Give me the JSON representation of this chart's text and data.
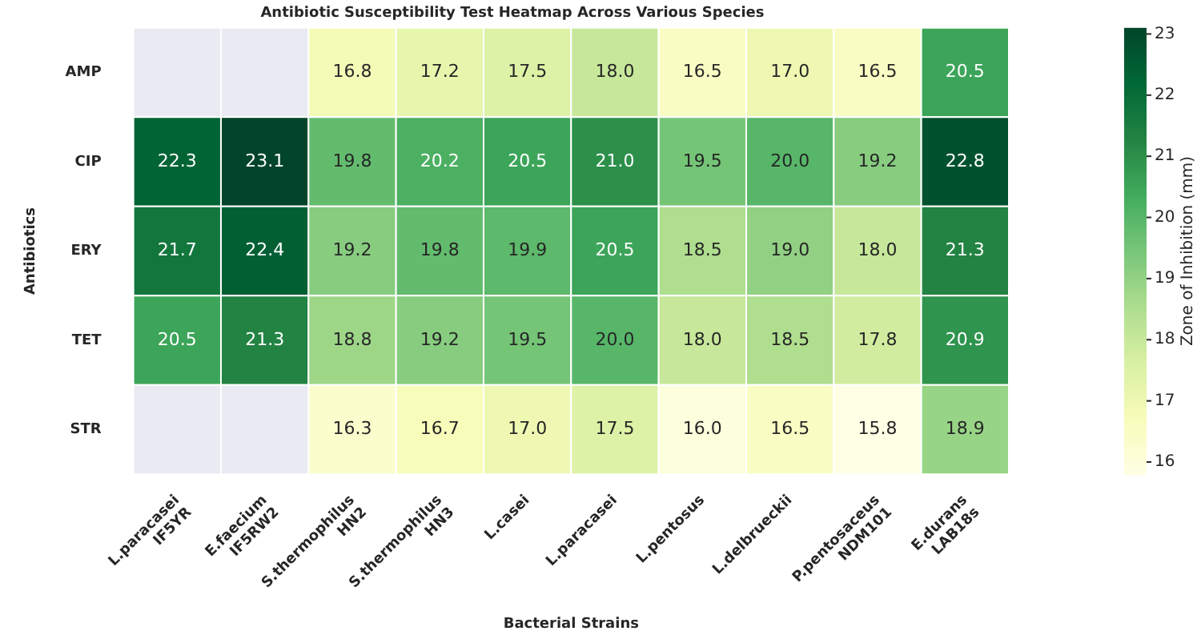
{
  "chart_data": {
    "type": "heatmap",
    "title": "Antibiotic Susceptibility Test Heatmap Across Various Species",
    "xlabel": "Bacterial Strains",
    "ylabel": "Antibiotics",
    "clabel": "Zone of Inhibition (mm)",
    "categories": [
      "L.paracasei\nIF5YR",
      "E.faecium\nIF5RW2",
      "S.thermophilus\nHN2",
      "S.thermophilus\nHN3",
      "L.casei",
      "L.paracasei",
      "L.pentosus",
      "L.delbrueckii",
      "P.pentosaceus\nNDM101",
      "E.durans\nLAB18s"
    ],
    "y_categories": [
      "AMP",
      "CIP",
      "ERY",
      "TET",
      "STR"
    ],
    "cells": [
      [
        null,
        null,
        16.8,
        17.2,
        17.5,
        18.0,
        16.5,
        17.0,
        16.5,
        20.5
      ],
      [
        22.3,
        23.1,
        19.8,
        20.2,
        20.5,
        21.0,
        19.5,
        20.0,
        19.2,
        22.8
      ],
      [
        21.7,
        22.4,
        19.2,
        19.8,
        19.9,
        20.5,
        18.5,
        19.0,
        18.0,
        21.3
      ],
      [
        20.5,
        21.3,
        18.8,
        19.2,
        19.5,
        20.0,
        18.0,
        18.5,
        17.8,
        20.9
      ],
      [
        null,
        null,
        16.3,
        16.7,
        17.0,
        17.5,
        16.0,
        16.5,
        15.8,
        18.9
      ]
    ],
    "cell_labels": [
      [
        null,
        null,
        "16.8",
        "17.2",
        "17.5",
        "18.0",
        "16.5",
        "17.0",
        "16.5",
        "20.5"
      ],
      [
        "22.3",
        "23.1",
        "19.8",
        "20.2",
        "20.5",
        "21.0",
        "19.5",
        "20.0",
        "19.2",
        "22.8"
      ],
      [
        "21.7",
        "22.4",
        "19.2",
        "19.8",
        "19.9",
        "20.5",
        "18.5",
        "19.0",
        "18.0",
        "21.3"
      ],
      [
        "20.5",
        "21.3",
        "18.8",
        "19.2",
        "19.5",
        "20.0",
        "18.0",
        "18.5",
        "17.8",
        "20.9"
      ],
      [
        null,
        null,
        "16.3",
        "16.7",
        "17.0",
        "17.5",
        "16.0",
        "16.5",
        "15.8",
        "18.9"
      ]
    ],
    "clim": [
      15.8,
      23.1
    ],
    "cticks": [
      16,
      17,
      18,
      19,
      20,
      21,
      22,
      23
    ]
  }
}
